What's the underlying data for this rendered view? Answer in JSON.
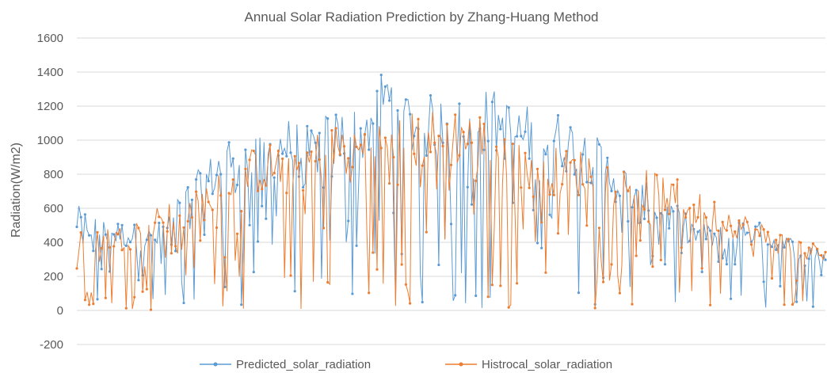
{
  "chart_data": {
    "type": "line",
    "title": "Annual Solar Radiation Prediction by Zhang-Huang Method",
    "xlabel": "",
    "ylabel": "Radiation(W/m2)",
    "ylim": [
      -200,
      1600
    ],
    "yticks": [
      -200,
      0,
      200,
      400,
      600,
      800,
      1000,
      1200,
      1400,
      1600
    ],
    "grid": "horizontal",
    "legend_position": "bottom",
    "series": [
      {
        "name": "Predicted_solar_radiation",
        "color": "#5B9BD5",
        "envelope_peaks": [
          620,
          540,
          520,
          480,
          700,
          880,
          1060,
          1010,
          1150,
          1080,
          1200,
          1200,
          1470,
          1270,
          1270,
          1240,
          1320,
          1210,
          1210,
          1150,
          1050,
          880,
          760,
          650,
          520,
          500,
          560,
          470,
          420,
          380
        ]
      },
      {
        "name": "Histrocal_solar_radiation",
        "color": "#ED7D31",
        "envelope_peaks": [
          460,
          500,
          500,
          680,
          620,
          760,
          870,
          980,
          1000,
          1030,
          1120,
          1100,
          1160,
          1170,
          1190,
          1200,
          1150,
          1040,
          980,
          950,
          960,
          850,
          830,
          810,
          700,
          640,
          560,
          480,
          430,
          380
        ]
      }
    ]
  }
}
